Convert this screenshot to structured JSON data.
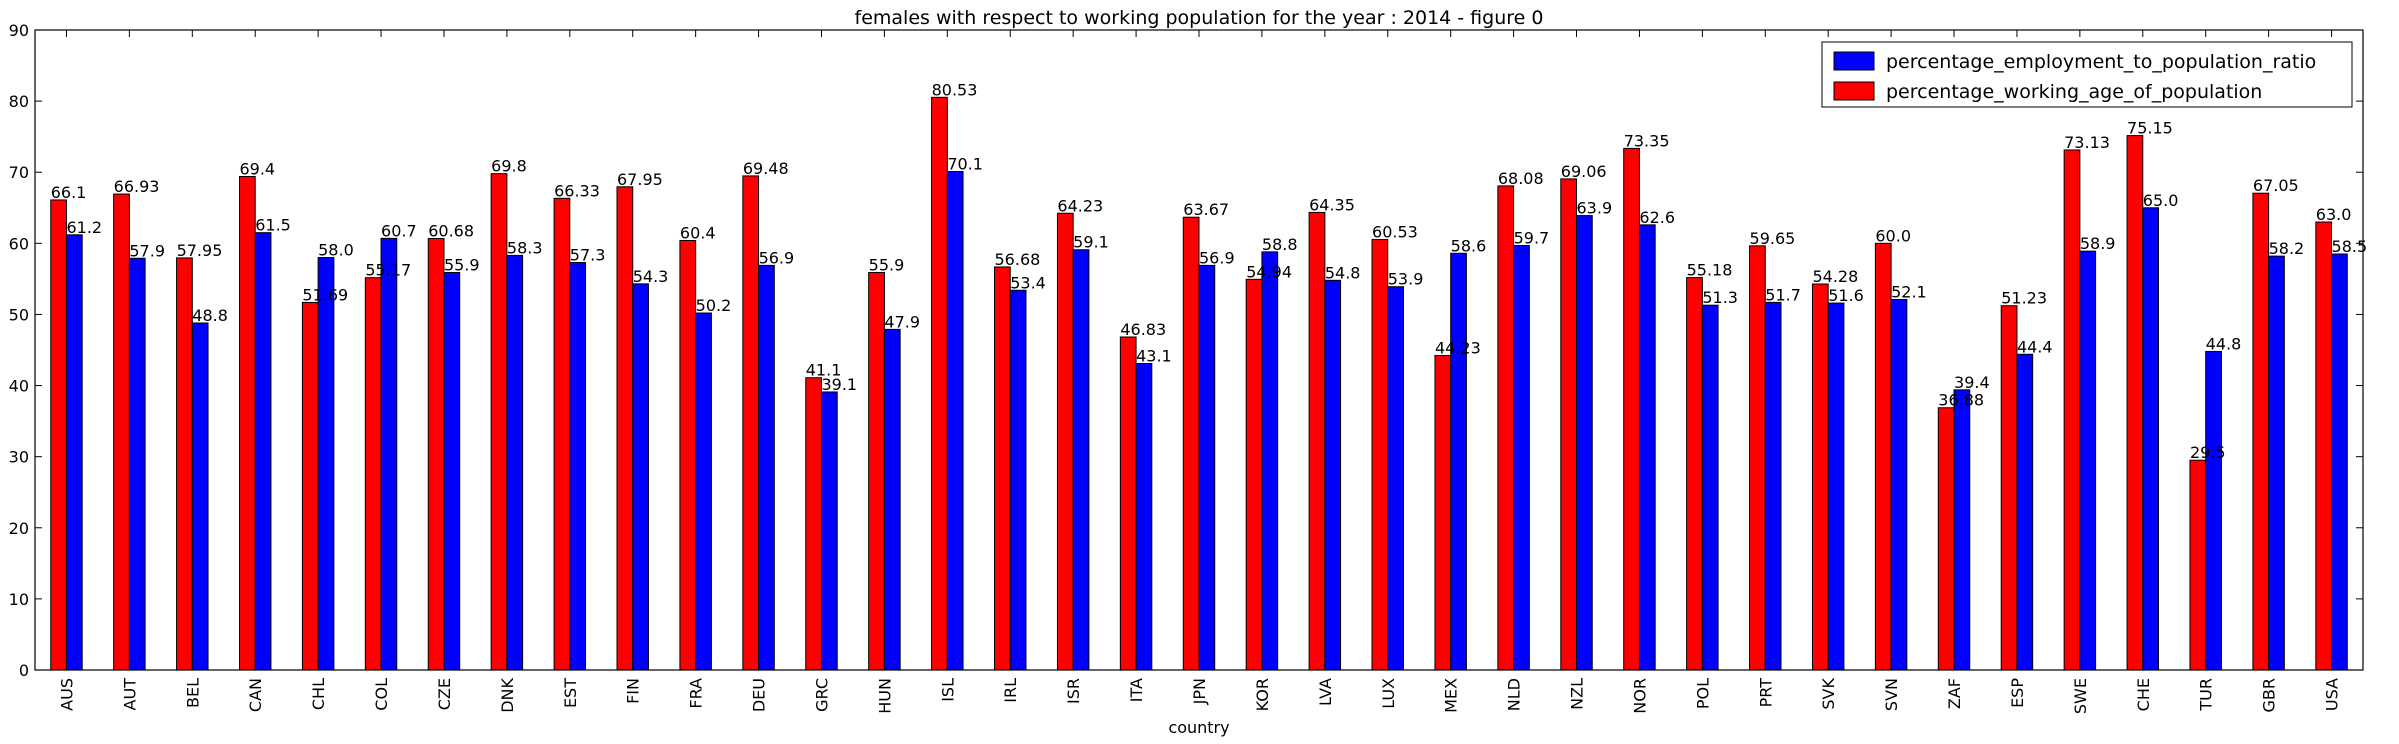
{
  "chart_data": {
    "type": "bar",
    "title": "females with respect to working population for the year : 2014 - figure 0",
    "xlabel": "country",
    "ylabel": "",
    "ylim": [
      0,
      90
    ],
    "yticks": [
      0,
      10,
      20,
      30,
      40,
      50,
      60,
      70,
      80,
      90
    ],
    "grid": false,
    "legend_position": "top-right",
    "categories": [
      "AUS",
      "AUT",
      "BEL",
      "CAN",
      "CHL",
      "COL",
      "CZE",
      "DNK",
      "EST",
      "FIN",
      "FRA",
      "DEU",
      "GRC",
      "HUN",
      "ISL",
      "IRL",
      "ISR",
      "ITA",
      "JPN",
      "KOR",
      "LVA",
      "LUX",
      "MEX",
      "NLD",
      "NZL",
      "NOR",
      "POL",
      "PRT",
      "SVK",
      "SVN",
      "ZAF",
      "ESP",
      "SWE",
      "CHE",
      "TUR",
      "GBR",
      "USA"
    ],
    "series": [
      {
        "name": "percentage_working_age_of_population",
        "color": "#ff0000",
        "values": [
          66.1,
          66.93,
          57.95,
          69.4,
          51.69,
          55.17,
          60.68,
          69.8,
          66.33,
          67.95,
          60.4,
          69.48,
          41.1,
          55.9,
          80.53,
          56.68,
          64.23,
          46.83,
          63.67,
          54.94,
          64.35,
          60.53,
          44.23,
          68.08,
          69.06,
          73.35,
          55.18,
          59.65,
          54.28,
          60.0,
          36.88,
          51.23,
          73.13,
          75.15,
          29.5,
          67.05,
          63.0
        ],
        "labels": [
          "66.1",
          "66.93",
          "57.95",
          "69.4",
          "51.69",
          "55.17",
          "60.68",
          "69.8",
          "66.33",
          "67.95",
          "60.4",
          "69.48",
          "41.1",
          "55.9",
          "80.53",
          "56.68",
          "64.23",
          "46.83",
          "63.67",
          "54.94",
          "64.35",
          "60.53",
          "44.23",
          "68.08",
          "69.06",
          "73.35",
          "55.18",
          "59.65",
          "54.28",
          "60.0",
          "36.88",
          "51.23",
          "73.13",
          "75.15",
          "29.5",
          "67.05",
          "63.0"
        ]
      },
      {
        "name": "percentage_employment_to_population_ratio",
        "color": "#0000ff",
        "values": [
          61.2,
          57.9,
          48.8,
          61.5,
          58.0,
          60.7,
          55.9,
          58.3,
          57.3,
          54.3,
          50.2,
          56.9,
          39.1,
          47.9,
          70.1,
          53.4,
          59.1,
          43.1,
          56.9,
          58.8,
          54.8,
          53.9,
          58.6,
          59.7,
          63.9,
          62.6,
          51.3,
          51.7,
          51.6,
          52.1,
          39.4,
          44.4,
          58.9,
          65.0,
          44.8,
          58.2,
          58.5
        ],
        "labels": [
          "61.2",
          "57.9",
          "48.8",
          "61.5",
          "58.0",
          "60.7",
          "55.9",
          "58.3",
          "57.3",
          "54.3",
          "50.2",
          "56.9",
          "39.1",
          "47.9",
          "70.1",
          "53.4",
          "59.1",
          "43.1",
          "56.9",
          "58.8",
          "54.8",
          "53.9",
          "58.6",
          "59.7",
          "63.9",
          "62.6",
          "51.3",
          "51.7",
          "51.6",
          "52.1",
          "39.4",
          "44.4",
          "58.9",
          "65.0",
          "44.8",
          "58.2",
          "58.5"
        ]
      }
    ],
    "legend": [
      {
        "name": "percentage_employment_to_population_ratio",
        "color": "#0000ff"
      },
      {
        "name": "percentage_working_age_of_population",
        "color": "#ff0000"
      }
    ]
  }
}
